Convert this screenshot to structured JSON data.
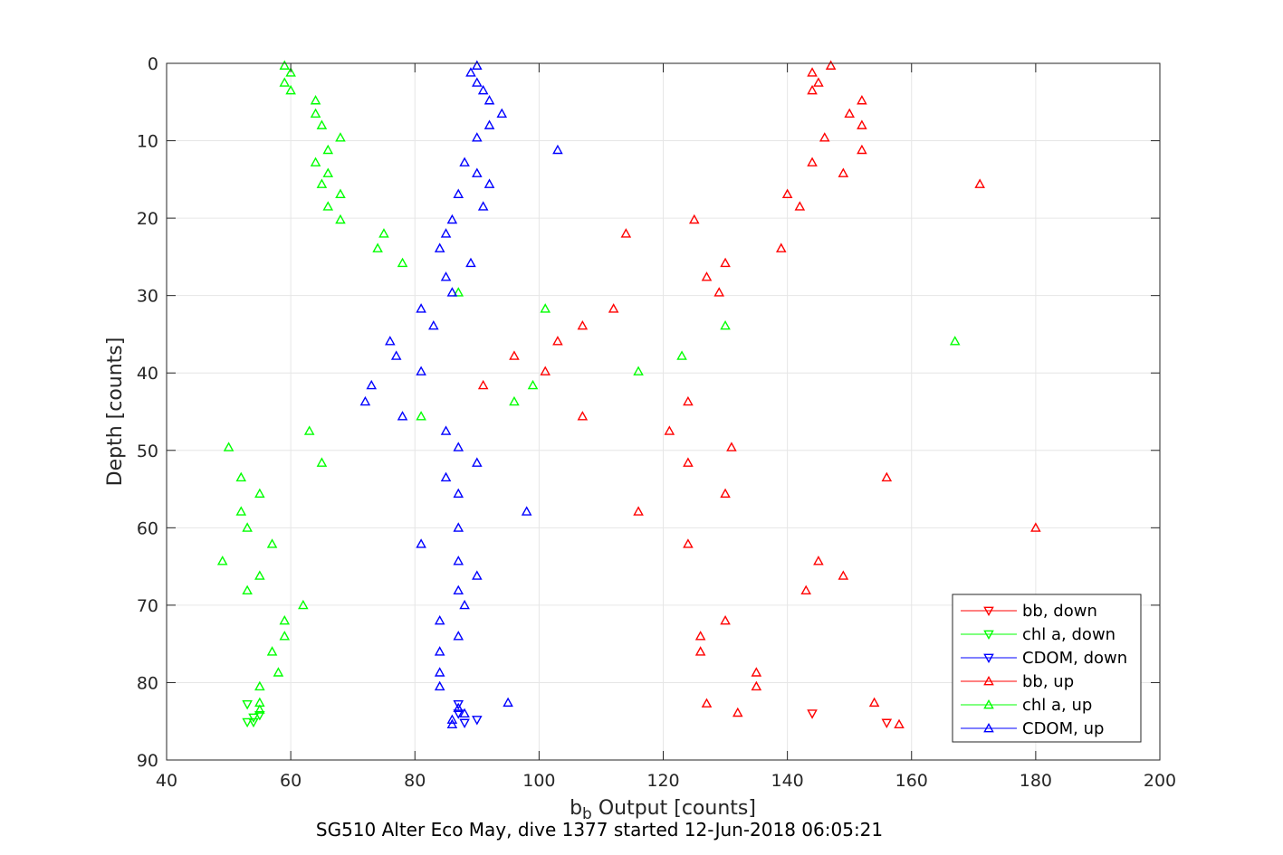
{
  "chart_data": {
    "type": "scatter",
    "xlabel_main": "b",
    "xlabel_sub": "b",
    "xlabel_rest": " Output [counts]",
    "ylabel": "Depth [counts]",
    "caption": "SG510 Alter Eco May, dive 1377 started 12-Jun-2018 06:05:21",
    "xlim": [
      40,
      200
    ],
    "ylim": [
      0,
      90
    ],
    "y_reversed": true,
    "grid": true,
    "legend_position": "bottom-right",
    "x_ticks": [
      "40",
      "60",
      "80",
      "100",
      "120",
      "140",
      "160",
      "180",
      "200"
    ],
    "y_ticks": [
      "0",
      "10",
      "20",
      "30",
      "40",
      "50",
      "60",
      "70",
      "80",
      "90"
    ],
    "series": [
      {
        "name": "bb, down",
        "color": "#ff0000",
        "marker": "triangle-down",
        "points": [
          [
            144,
            84
          ],
          [
            156,
            85.2
          ]
        ]
      },
      {
        "name": "chl a, down",
        "color": "#00ff00",
        "marker": "triangle-down",
        "points": [
          [
            53,
            82.8
          ],
          [
            53,
            85.1
          ],
          [
            54,
            85.1
          ],
          [
            54,
            84.5
          ],
          [
            55,
            84.2
          ]
        ]
      },
      {
        "name": "CDOM, down",
        "color": "#0000ff",
        "marker": "triangle-down",
        "points": [
          [
            87,
            82.8
          ],
          [
            87,
            84
          ],
          [
            90,
            84.8
          ],
          [
            88,
            85.2
          ]
        ]
      },
      {
        "name": "bb, up",
        "color": "#ff0000",
        "marker": "triangle-up",
        "points": [
          [
            147,
            0.3
          ],
          [
            144,
            1.2
          ],
          [
            145,
            2.5
          ],
          [
            144,
            3.5
          ],
          [
            152,
            4.8
          ],
          [
            150,
            6.5
          ],
          [
            152,
            8
          ],
          [
            146,
            9.6
          ],
          [
            152,
            11.2
          ],
          [
            144,
            12.8
          ],
          [
            149,
            14.2
          ],
          [
            171,
            15.6
          ],
          [
            140,
            16.9
          ],
          [
            142,
            18.5
          ],
          [
            125,
            20.2
          ],
          [
            114,
            22
          ],
          [
            139,
            23.9
          ],
          [
            130,
            25.8
          ],
          [
            127,
            27.6
          ],
          [
            129,
            29.6
          ],
          [
            112,
            31.7
          ],
          [
            107,
            33.9
          ],
          [
            103,
            35.9
          ],
          [
            96,
            37.8
          ],
          [
            101,
            39.8
          ],
          [
            91,
            41.6
          ],
          [
            124,
            43.7
          ],
          [
            107,
            45.6
          ],
          [
            121,
            47.5
          ],
          [
            131,
            49.6
          ],
          [
            124,
            51.6
          ],
          [
            156,
            53.5
          ],
          [
            130,
            55.6
          ],
          [
            116,
            57.9
          ],
          [
            180,
            60
          ],
          [
            124,
            62.1
          ],
          [
            145,
            64.3
          ],
          [
            149,
            66.2
          ],
          [
            143,
            68.1
          ],
          [
            130,
            72
          ],
          [
            126,
            74
          ],
          [
            126,
            76
          ],
          [
            135,
            78.7
          ],
          [
            135,
            80.5
          ],
          [
            154,
            82.6
          ],
          [
            127,
            82.7
          ],
          [
            132,
            83.9
          ],
          [
            158,
            85.4
          ]
        ]
      },
      {
        "name": "chl a, up",
        "color": "#00ff00",
        "marker": "triangle-up",
        "points": [
          [
            59,
            0.3
          ],
          [
            60,
            1.2
          ],
          [
            59,
            2.5
          ],
          [
            60,
            3.5
          ],
          [
            64,
            4.8
          ],
          [
            64,
            6.5
          ],
          [
            65,
            8
          ],
          [
            68,
            9.6
          ],
          [
            66,
            11.2
          ],
          [
            64,
            12.8
          ],
          [
            66,
            14.2
          ],
          [
            65,
            15.6
          ],
          [
            68,
            16.9
          ],
          [
            66,
            18.5
          ],
          [
            68,
            20.2
          ],
          [
            75,
            22
          ],
          [
            74,
            23.9
          ],
          [
            78,
            25.8
          ],
          [
            87,
            29.6
          ],
          [
            101,
            31.7
          ],
          [
            130,
            33.9
          ],
          [
            167,
            35.9
          ],
          [
            123,
            37.8
          ],
          [
            116,
            39.8
          ],
          [
            99,
            41.6
          ],
          [
            96,
            43.7
          ],
          [
            81,
            45.6
          ],
          [
            63,
            47.5
          ],
          [
            50,
            49.6
          ],
          [
            65,
            51.6
          ],
          [
            52,
            53.5
          ],
          [
            55,
            55.6
          ],
          [
            52,
            57.9
          ],
          [
            53,
            60
          ],
          [
            57,
            62.1
          ],
          [
            49,
            64.3
          ],
          [
            55,
            66.2
          ],
          [
            53,
            68.1
          ],
          [
            62,
            70
          ],
          [
            59,
            72
          ],
          [
            59,
            74
          ],
          [
            57,
            76
          ],
          [
            58,
            78.7
          ],
          [
            55,
            80.5
          ],
          [
            55,
            82.6
          ],
          [
            55,
            83.5
          ]
        ]
      },
      {
        "name": "CDOM, up",
        "color": "#0000ff",
        "marker": "triangle-up",
        "points": [
          [
            90,
            0.3
          ],
          [
            89,
            1.2
          ],
          [
            90,
            2.5
          ],
          [
            91,
            3.5
          ],
          [
            92,
            4.8
          ],
          [
            94,
            6.5
          ],
          [
            92,
            8
          ],
          [
            90,
            9.6
          ],
          [
            103,
            11.2
          ],
          [
            88,
            12.8
          ],
          [
            90,
            14.2
          ],
          [
            92,
            15.6
          ],
          [
            87,
            16.9
          ],
          [
            91,
            18.5
          ],
          [
            86,
            20.2
          ],
          [
            85,
            22
          ],
          [
            84,
            23.9
          ],
          [
            89,
            25.8
          ],
          [
            85,
            27.6
          ],
          [
            86,
            29.6
          ],
          [
            81,
            31.7
          ],
          [
            83,
            33.9
          ],
          [
            76,
            35.9
          ],
          [
            77,
            37.8
          ],
          [
            81,
            39.8
          ],
          [
            73,
            41.6
          ],
          [
            72,
            43.7
          ],
          [
            78,
            45.6
          ],
          [
            85,
            47.5
          ],
          [
            87,
            49.6
          ],
          [
            90,
            51.6
          ],
          [
            85,
            53.5
          ],
          [
            87,
            55.6
          ],
          [
            98,
            57.9
          ],
          [
            87,
            60
          ],
          [
            81,
            62.1
          ],
          [
            87,
            64.3
          ],
          [
            90,
            66.2
          ],
          [
            87,
            68.1
          ],
          [
            88,
            70
          ],
          [
            84,
            72
          ],
          [
            87,
            74
          ],
          [
            84,
            76
          ],
          [
            84,
            78.7
          ],
          [
            84,
            80.5
          ],
          [
            95,
            82.6
          ],
          [
            87,
            83.3
          ],
          [
            88,
            84
          ],
          [
            86,
            84.8
          ],
          [
            86,
            85.4
          ]
        ]
      }
    ]
  }
}
